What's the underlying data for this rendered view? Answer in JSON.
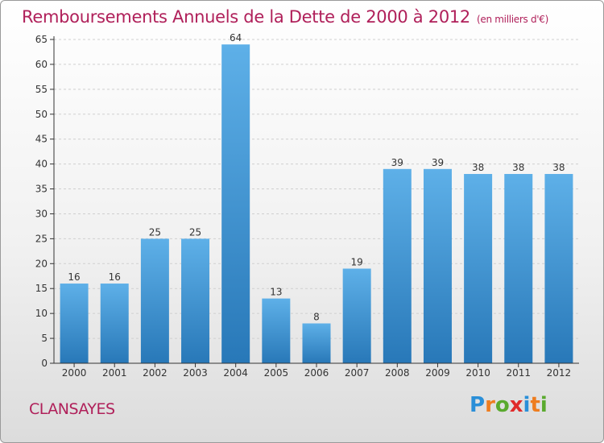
{
  "chart_title": "Remboursements Annuels de la Dette de 2000 à 2012",
  "chart_subtitle": "(en milliers d'€)",
  "commune": "CLANSAYES",
  "logo": {
    "text": "Proxiti",
    "letters": [
      {
        "ch": "P",
        "color": "#2a8fd8"
      },
      {
        "ch": "r",
        "color": "#ee7d1f"
      },
      {
        "ch": "o",
        "color": "#5aaa2e"
      },
      {
        "ch": "x",
        "color": "#e02a2a"
      },
      {
        "ch": "i",
        "color": "#2a8fd8"
      },
      {
        "ch": "t",
        "color": "#ee7d1f"
      },
      {
        "ch": "i",
        "color": "#5aaa2e"
      }
    ]
  },
  "colors": {
    "title": "#b0205a",
    "bar_top": "#5eb0e8",
    "bar_bottom": "#2878b8",
    "axis": "#333333",
    "grid": "#cfcfcf"
  },
  "chart_data": {
    "type": "bar",
    "categories": [
      "2000",
      "2001",
      "2002",
      "2003",
      "2004",
      "2005",
      "2006",
      "2007",
      "2008",
      "2009",
      "2010",
      "2011",
      "2012"
    ],
    "values": [
      16,
      16,
      25,
      25,
      64,
      13,
      8,
      19,
      39,
      39,
      38,
      38,
      38
    ],
    "data_labels": [
      "16",
      "16",
      "25",
      "25",
      "64",
      "13",
      "8",
      "19",
      "39",
      "39",
      "38",
      "38",
      "38"
    ],
    "yticks": [
      "0",
      "5",
      "10",
      "15",
      "20",
      "25",
      "30",
      "35",
      "40",
      "45",
      "50",
      "55",
      "60",
      "65"
    ],
    "ylim": [
      0,
      65
    ],
    "grid": "horizontal dashed",
    "legend": "none"
  }
}
